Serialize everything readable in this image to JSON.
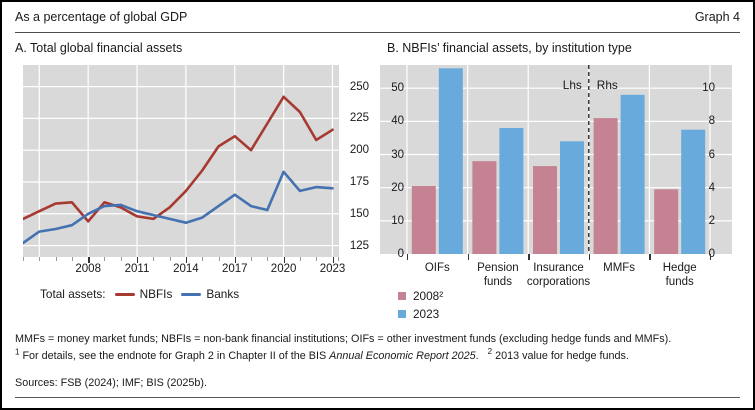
{
  "header": {
    "title": "As a percentage of global GDP",
    "graph_label": "Graph 4"
  },
  "panel_a": {
    "title": "A. Total global financial assets",
    "legend": {
      "prefix": "Total assets:",
      "series": [
        {
          "label": "NBFIs",
          "color": "#a63a32"
        },
        {
          "label": "Banks",
          "color": "#4472b0"
        }
      ]
    }
  },
  "panel_b": {
    "title": "B. NBFIs’ financial assets, by institution type",
    "lhs_label": "Lhs",
    "rhs_label": "Rhs",
    "legend": [
      {
        "label": "2008²",
        "color": "#c48292"
      },
      {
        "label": "2023",
        "color": "#68aadc"
      }
    ]
  },
  "footnotes": {
    "definitions": "MMFs = money market funds; NBFIs = non-bank financial institutions; OIFs = other investment funds (excluding hedge funds and MMFs).",
    "note1_marker": "1",
    "note1_text": "For details, see the endnote for Graph 2 in Chapter II of the BIS ",
    "note1_italic": "Annual Economic Report 2025",
    "note1_tail": ".",
    "note2_marker": "2",
    "note2_text": "2013 value for hedge funds.",
    "sources": "Sources: FSB (2024); IMF; BIS (2025b)."
  },
  "chart_data": [
    {
      "type": "line",
      "title": "A. Total global financial assets",
      "ylabel": "% of global GDP",
      "x": [
        2004,
        2005,
        2006,
        2007,
        2008,
        2009,
        2010,
        2011,
        2012,
        2013,
        2014,
        2015,
        2016,
        2017,
        2018,
        2019,
        2020,
        2021,
        2022,
        2023
      ],
      "series": [
        {
          "name": "NBFIs",
          "color": "#a63a32",
          "values": [
            146,
            152,
            158,
            159,
            144,
            159,
            155,
            148,
            146,
            155,
            168,
            184,
            203,
            211,
            200,
            221,
            242,
            230,
            208,
            216
          ]
        },
        {
          "name": "Banks",
          "color": "#4472b0",
          "values": [
            127,
            136,
            138,
            141,
            150,
            156,
            157,
            152,
            149,
            146,
            143,
            147,
            156,
            165,
            156,
            153,
            183,
            168,
            171,
            170
          ]
        }
      ],
      "xlim": [
        2004,
        2023.4
      ],
      "ylim": [
        116,
        267
      ],
      "y_ticks": [
        125,
        150,
        175,
        200,
        225,
        250
      ],
      "x_tick_labels": [
        2008,
        2011,
        2014,
        2017,
        2020,
        2023
      ],
      "x_gridlines": [
        2005,
        2008,
        2011,
        2014,
        2017,
        2020,
        2023
      ],
      "yaxis_side": "right",
      "grid": true,
      "plot_bg": "#d9d9d9"
    },
    {
      "type": "bar",
      "title": "B. NBFIs’ financial assets, by institution type",
      "categories": [
        "OIFs",
        "Pension funds",
        "Insurance corporations",
        "MMFs",
        "Hedge funds"
      ],
      "category_axis": [
        "lhs",
        "lhs",
        "lhs",
        "rhs",
        "rhs"
      ],
      "series": [
        {
          "name": "2008²",
          "color": "#c48292",
          "values": [
            20.5,
            28,
            26.5,
            8.2,
            3.9
          ]
        },
        {
          "name": "2023",
          "color": "#68aadc",
          "values": [
            56,
            38,
            34,
            9.6,
            7.5
          ]
        }
      ],
      "lhs_ticks": [
        0,
        10,
        20,
        30,
        40,
        50
      ],
      "rhs_ticks": [
        0,
        2,
        4,
        6,
        8,
        10
      ],
      "lhs_lim": [
        0,
        57
      ],
      "rhs_lim": [
        0,
        11.4
      ],
      "divider_boundary_index": 3,
      "note": "2008 value for hedge funds is the 2013 value",
      "grid": true,
      "plot_bg": "#d9d9d9"
    }
  ]
}
